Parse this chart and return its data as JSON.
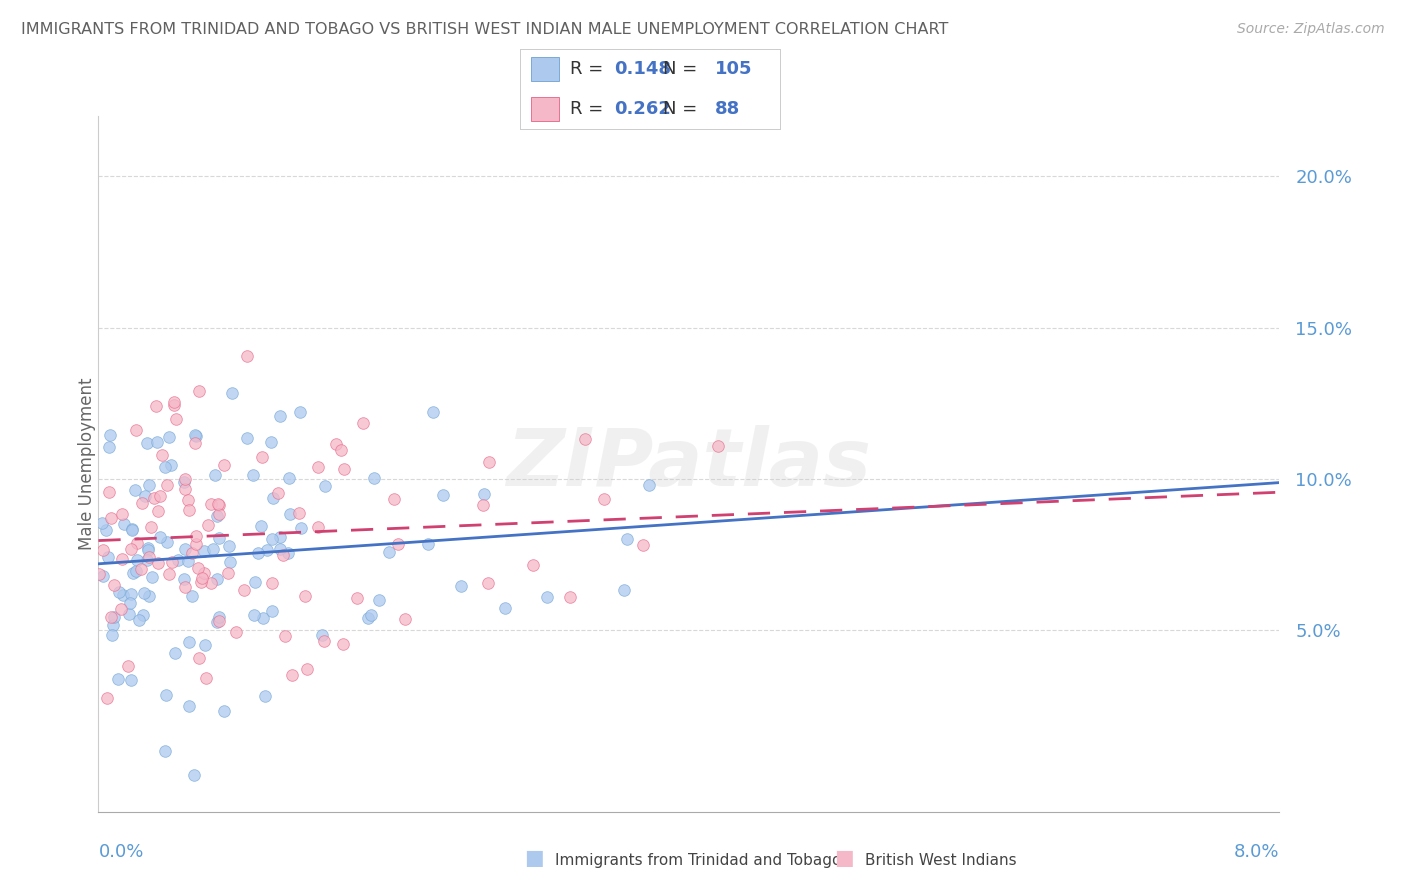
{
  "title": "IMMIGRANTS FROM TRINIDAD AND TOBAGO VS BRITISH WEST INDIAN MALE UNEMPLOYMENT CORRELATION CHART",
  "source": "Source: ZipAtlas.com",
  "ylabel": "Male Unemployment",
  "xlim": [
    0.0,
    8.0
  ],
  "ylim": [
    -1.0,
    22.0
  ],
  "yticks": [
    5.0,
    10.0,
    15.0,
    20.0
  ],
  "ytick_labels": [
    "5.0%",
    "10.0%",
    "15.0%",
    "20.0%"
  ],
  "series1_label": "Immigrants from Trinidad and Tobago",
  "series1_R": "0.148",
  "series1_N": "105",
  "series1_color": "#adc9ee",
  "series1_edge": "#7aaad8",
  "series2_label": "British West Indians",
  "series2_R": "0.262",
  "series2_N": "88",
  "series2_color": "#f5b8c8",
  "series2_edge": "#e87090",
  "trend1_color": "#4472c4",
  "trend2_color": "#d04070",
  "watermark": "ZIPatlas",
  "background_color": "#ffffff",
  "grid_color": "#d8d8d8",
  "title_color": "#606060",
  "axis_label_color": "#5b9bd5",
  "legend_val_color": "#4472c4",
  "legend_text_color": "#333333"
}
